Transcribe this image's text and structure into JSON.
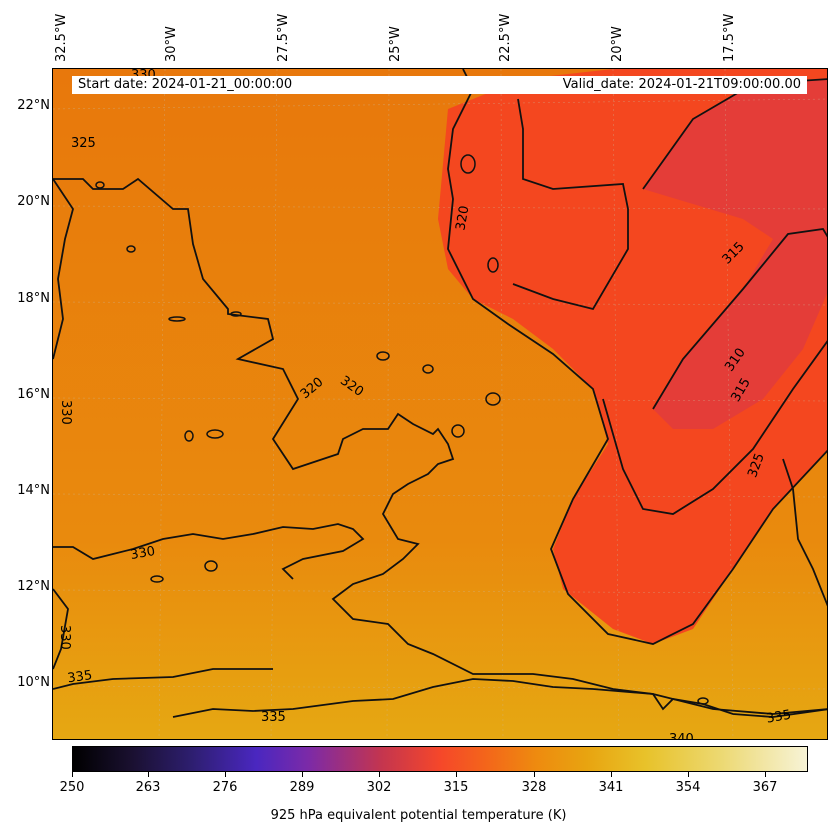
{
  "map": {
    "start_date": "Start date: 2024-01-21_00:00:00",
    "valid_date": "Valid_date: 2024-01-21T09:00:00.00",
    "lon_ticks": [
      "32.5°W",
      "30°W",
      "27.5°W",
      "25°W",
      "22.5°W",
      "20°W",
      "17.5°W"
    ],
    "lat_ticks": [
      "22°N",
      "20°N",
      "18°N",
      "16°N",
      "14°N",
      "12°N",
      "10°N"
    ],
    "contour_labels": [
      "325",
      "320",
      "315",
      "310",
      "315",
      "325",
      "320",
      "320",
      "330",
      "330",
      "330",
      "335",
      "335",
      "335",
      "340",
      "330"
    ],
    "colors": {
      "background_field": "#e8780c",
      "warm_band": "#f7471f",
      "core": "#e43b3a",
      "south": "#e8a010",
      "contour": "#000000"
    }
  },
  "colorbar": {
    "label": "925 hPa equivalent potential temperature (K)",
    "ticks": [
      "250",
      "263",
      "276",
      "289",
      "302",
      "315",
      "328",
      "341",
      "354",
      "367"
    ]
  }
}
